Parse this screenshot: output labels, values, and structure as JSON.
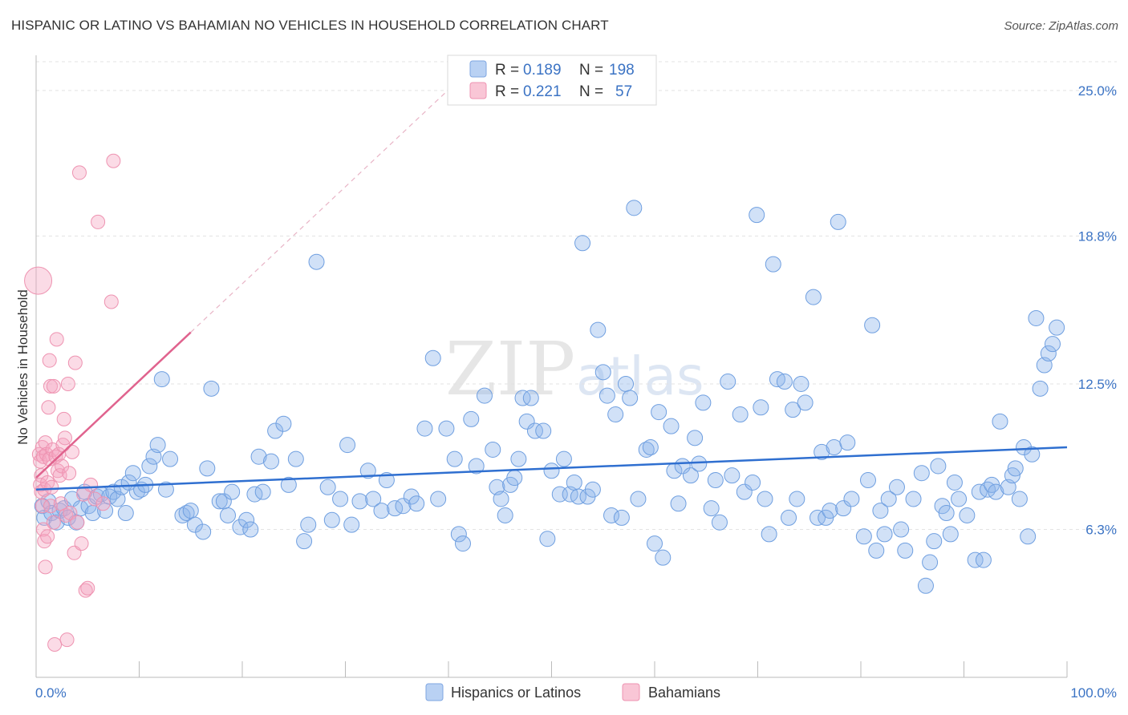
{
  "header": {
    "title": "HISPANIC OR LATINO VS BAHAMIAN NO VEHICLES IN HOUSEHOLD CORRELATION CHART",
    "source": "Source: ZipAtlas.com"
  },
  "colors": {
    "blue": "#8bb4ec",
    "blue_line": "#2f6fd0",
    "pink": "#f4a6c0",
    "pink_line": "#e0638e",
    "axis_text": "#3b73c4"
  },
  "chart_data": {
    "type": "scatter",
    "title": "HISPANIC OR LATINO VS BAHAMIAN NO VEHICLES IN HOUSEHOLD CORRELATION CHART",
    "xlabel": "",
    "ylabel": "No Vehicles in Household",
    "xlim": [
      0,
      100
    ],
    "ylim": [
      0,
      26.5
    ],
    "x_tick_labels": [
      "0.0%",
      "100.0%"
    ],
    "y_ticks": [
      6.3,
      12.5,
      18.8,
      25.0
    ],
    "y_tick_labels": [
      "6.3%",
      "12.5%",
      "18.8%",
      "25.0%"
    ],
    "grid": true,
    "legend": {
      "placement": "top-center",
      "rows": [
        {
          "r_label": "R =",
          "r_value": "0.189",
          "n_label": "N =",
          "n_value": "198"
        },
        {
          "r_label": "R =",
          "r_value": "0.221",
          "n_label": "N =",
          "n_value": "57"
        }
      ]
    },
    "series": [
      {
        "name": "Hispanics or Latinos",
        "trend": {
          "x0": 0,
          "y0": 8.0,
          "x1": 100,
          "y1": 9.8
        },
        "points": [
          [
            0.6,
            7.3
          ],
          [
            0.8,
            6.8
          ],
          [
            1.2,
            7.5
          ],
          [
            1.5,
            7.0
          ],
          [
            2.0,
            6.6
          ],
          [
            2.3,
            7.1
          ],
          [
            2.7,
            7.2
          ],
          [
            3.1,
            6.8
          ],
          [
            3.5,
            7.6
          ],
          [
            3.9,
            6.6
          ],
          [
            4.3,
            7.2
          ],
          [
            4.7,
            7.9
          ],
          [
            5.1,
            7.3
          ],
          [
            5.5,
            7.0
          ],
          [
            5.9,
            7.7
          ],
          [
            6.3,
            7.8
          ],
          [
            6.7,
            7.1
          ],
          [
            7.1,
            7.7
          ],
          [
            7.5,
            7.9
          ],
          [
            7.9,
            7.6
          ],
          [
            8.3,
            8.1
          ],
          [
            8.7,
            7.0
          ],
          [
            9.0,
            8.3
          ],
          [
            9.4,
            8.7
          ],
          [
            9.8,
            7.9
          ],
          [
            10.2,
            8.0
          ],
          [
            10.6,
            8.2
          ],
          [
            11.0,
            9.0
          ],
          [
            11.4,
            9.4
          ],
          [
            11.8,
            9.9
          ],
          [
            12.2,
            12.7
          ],
          [
            12.6,
            8.0
          ],
          [
            13.0,
            9.3
          ],
          [
            14.2,
            6.9
          ],
          [
            14.6,
            7.0
          ],
          [
            15.0,
            7.1
          ],
          [
            15.4,
            6.5
          ],
          [
            16.2,
            6.2
          ],
          [
            16.6,
            8.9
          ],
          [
            17.0,
            12.3
          ],
          [
            17.8,
            7.5
          ],
          [
            18.2,
            7.5
          ],
          [
            18.6,
            6.9
          ],
          [
            19.0,
            7.9
          ],
          [
            19.8,
            6.4
          ],
          [
            20.4,
            6.7
          ],
          [
            20.8,
            6.3
          ],
          [
            21.2,
            7.8
          ],
          [
            21.6,
            9.4
          ],
          [
            22.0,
            7.9
          ],
          [
            22.8,
            9.2
          ],
          [
            23.2,
            10.5
          ],
          [
            24.0,
            10.8
          ],
          [
            24.5,
            8.2
          ],
          [
            25.2,
            9.3
          ],
          [
            26.0,
            5.8
          ],
          [
            26.4,
            6.5
          ],
          [
            27.2,
            17.7
          ],
          [
            28.3,
            8.1
          ],
          [
            28.7,
            6.7
          ],
          [
            29.5,
            7.6
          ],
          [
            30.2,
            9.9
          ],
          [
            30.6,
            6.5
          ],
          [
            31.4,
            7.5
          ],
          [
            32.2,
            8.8
          ],
          [
            32.7,
            7.6
          ],
          [
            33.5,
            7.1
          ],
          [
            34.0,
            8.4
          ],
          [
            34.8,
            7.2
          ],
          [
            35.6,
            7.3
          ],
          [
            36.4,
            7.7
          ],
          [
            36.9,
            7.4
          ],
          [
            37.7,
            10.6
          ],
          [
            38.5,
            13.6
          ],
          [
            39.0,
            7.6
          ],
          [
            39.8,
            10.6
          ],
          [
            40.6,
            9.3
          ],
          [
            41.0,
            6.1
          ],
          [
            41.4,
            5.7
          ],
          [
            42.2,
            11.0
          ],
          [
            42.7,
            9.0
          ],
          [
            43.5,
            12.0
          ],
          [
            44.3,
            9.7
          ],
          [
            44.7,
            8.1
          ],
          [
            45.1,
            7.6
          ],
          [
            45.5,
            6.9
          ],
          [
            46.0,
            8.2
          ],
          [
            46.4,
            8.5
          ],
          [
            46.8,
            9.3
          ],
          [
            47.2,
            11.9
          ],
          [
            47.6,
            10.9
          ],
          [
            48.0,
            11.9
          ],
          [
            48.4,
            10.5
          ],
          [
            49.2,
            10.5
          ],
          [
            49.6,
            5.9
          ],
          [
            50.0,
            8.8
          ],
          [
            50.8,
            7.8
          ],
          [
            51.2,
            9.3
          ],
          [
            51.8,
            7.8
          ],
          [
            52.2,
            8.3
          ],
          [
            52.6,
            7.7
          ],
          [
            53.0,
            18.5
          ],
          [
            53.5,
            7.7
          ],
          [
            54.0,
            8.0
          ],
          [
            54.5,
            14.8
          ],
          [
            55.0,
            13.0
          ],
          [
            55.4,
            12.0
          ],
          [
            55.8,
            6.9
          ],
          [
            56.2,
            11.2
          ],
          [
            56.8,
            6.8
          ],
          [
            57.2,
            12.5
          ],
          [
            57.6,
            11.9
          ],
          [
            58.0,
            20.0
          ],
          [
            58.4,
            7.6
          ],
          [
            59.2,
            9.7
          ],
          [
            59.6,
            9.8
          ],
          [
            60.0,
            5.7
          ],
          [
            60.4,
            11.3
          ],
          [
            60.8,
            5.1
          ],
          [
            61.6,
            10.7
          ],
          [
            61.9,
            8.8
          ],
          [
            62.3,
            7.4
          ],
          [
            62.7,
            9.0
          ],
          [
            63.5,
            8.6
          ],
          [
            63.9,
            10.2
          ],
          [
            64.3,
            9.1
          ],
          [
            64.7,
            11.7
          ],
          [
            65.5,
            7.2
          ],
          [
            65.9,
            8.4
          ],
          [
            66.3,
            6.6
          ],
          [
            67.1,
            12.6
          ],
          [
            67.5,
            8.6
          ],
          [
            68.3,
            11.2
          ],
          [
            68.7,
            7.9
          ],
          [
            69.5,
            8.3
          ],
          [
            69.9,
            19.7
          ],
          [
            70.3,
            11.5
          ],
          [
            70.7,
            7.6
          ],
          [
            71.1,
            6.1
          ],
          [
            71.5,
            17.6
          ],
          [
            71.9,
            12.7
          ],
          [
            72.6,
            12.6
          ],
          [
            73.0,
            6.8
          ],
          [
            73.4,
            11.4
          ],
          [
            73.8,
            7.6
          ],
          [
            74.2,
            12.5
          ],
          [
            74.6,
            11.7
          ],
          [
            75.4,
            16.2
          ],
          [
            75.8,
            6.8
          ],
          [
            76.2,
            9.6
          ],
          [
            76.6,
            6.8
          ],
          [
            77.0,
            7.1
          ],
          [
            77.4,
            9.8
          ],
          [
            77.8,
            19.4
          ],
          [
            78.3,
            7.2
          ],
          [
            78.7,
            10.0
          ],
          [
            79.1,
            7.6
          ],
          [
            80.3,
            6.0
          ],
          [
            80.7,
            8.4
          ],
          [
            81.1,
            15.0
          ],
          [
            81.5,
            5.4
          ],
          [
            81.9,
            7.1
          ],
          [
            82.3,
            6.1
          ],
          [
            82.7,
            7.6
          ],
          [
            83.5,
            8.1
          ],
          [
            83.9,
            6.3
          ],
          [
            84.3,
            5.4
          ],
          [
            85.1,
            7.6
          ],
          [
            85.9,
            8.7
          ],
          [
            86.3,
            3.9
          ],
          [
            86.7,
            4.9
          ],
          [
            87.1,
            5.8
          ],
          [
            87.5,
            9.0
          ],
          [
            87.9,
            7.3
          ],
          [
            88.3,
            7.0
          ],
          [
            88.7,
            6.1
          ],
          [
            89.1,
            8.3
          ],
          [
            89.5,
            7.6
          ],
          [
            90.3,
            6.9
          ],
          [
            91.1,
            5.0
          ],
          [
            91.5,
            7.9
          ],
          [
            91.9,
            5.0
          ],
          [
            92.3,
            8.0
          ],
          [
            92.7,
            8.2
          ],
          [
            93.1,
            7.9
          ],
          [
            93.5,
            10.9
          ],
          [
            94.3,
            8.1
          ],
          [
            94.7,
            8.6
          ],
          [
            95.0,
            8.9
          ],
          [
            95.4,
            7.6
          ],
          [
            95.8,
            9.8
          ],
          [
            96.2,
            6.0
          ],
          [
            96.6,
            9.5
          ],
          [
            97.0,
            15.3
          ],
          [
            97.4,
            12.3
          ],
          [
            97.8,
            13.3
          ],
          [
            98.2,
            13.8
          ],
          [
            98.6,
            14.2
          ],
          [
            99.0,
            14.9
          ]
        ]
      },
      {
        "name": "Bahamians",
        "trend": {
          "x0": 0,
          "y0": 8.5,
          "x1": 15,
          "y1": 14.7
        },
        "points": [
          [
            0.2,
            16.9
          ],
          [
            0.3,
            9.5
          ],
          [
            0.4,
            8.2
          ],
          [
            0.4,
            9.2
          ],
          [
            0.5,
            7.9
          ],
          [
            0.5,
            8.6
          ],
          [
            0.6,
            9.8
          ],
          [
            0.6,
            7.3
          ],
          [
            0.7,
            6.3
          ],
          [
            0.7,
            9.4
          ],
          [
            0.8,
            5.8
          ],
          [
            0.8,
            8.0
          ],
          [
            0.9,
            10.0
          ],
          [
            0.9,
            4.7
          ],
          [
            1.0,
            9.5
          ],
          [
            1.1,
            6.0
          ],
          [
            1.1,
            8.3
          ],
          [
            1.2,
            11.5
          ],
          [
            1.3,
            13.5
          ],
          [
            1.3,
            9.3
          ],
          [
            1.4,
            7.3
          ],
          [
            1.4,
            12.4
          ],
          [
            1.5,
            8.1
          ],
          [
            1.6,
            9.7
          ],
          [
            1.7,
            12.4
          ],
          [
            1.7,
            6.6
          ],
          [
            1.8,
            1.4
          ],
          [
            1.9,
            9.4
          ],
          [
            2.0,
            14.4
          ],
          [
            2.1,
            8.8
          ],
          [
            2.2,
            9.5
          ],
          [
            2.3,
            8.6
          ],
          [
            2.4,
            7.4
          ],
          [
            2.5,
            9.0
          ],
          [
            2.6,
            9.9
          ],
          [
            2.7,
            11.0
          ],
          [
            2.8,
            10.2
          ],
          [
            2.9,
            6.9
          ],
          [
            3.0,
            1.6
          ],
          [
            3.1,
            12.5
          ],
          [
            3.2,
            8.7
          ],
          [
            3.3,
            7.0
          ],
          [
            3.5,
            9.6
          ],
          [
            3.7,
            5.3
          ],
          [
            3.8,
            13.4
          ],
          [
            4.0,
            6.6
          ],
          [
            4.2,
            21.5
          ],
          [
            4.4,
            5.7
          ],
          [
            4.6,
            7.8
          ],
          [
            4.8,
            3.7
          ],
          [
            5.0,
            3.8
          ],
          [
            5.3,
            8.2
          ],
          [
            5.7,
            7.6
          ],
          [
            6.0,
            19.4
          ],
          [
            6.5,
            7.4
          ],
          [
            7.3,
            16.0
          ],
          [
            7.5,
            22.0
          ]
        ]
      }
    ]
  },
  "bottom_legend": {
    "series_a": "Hispanics or Latinos",
    "series_b": "Bahamians"
  },
  "watermark": {
    "zip": "ZIP",
    "atlas": "atlas"
  }
}
